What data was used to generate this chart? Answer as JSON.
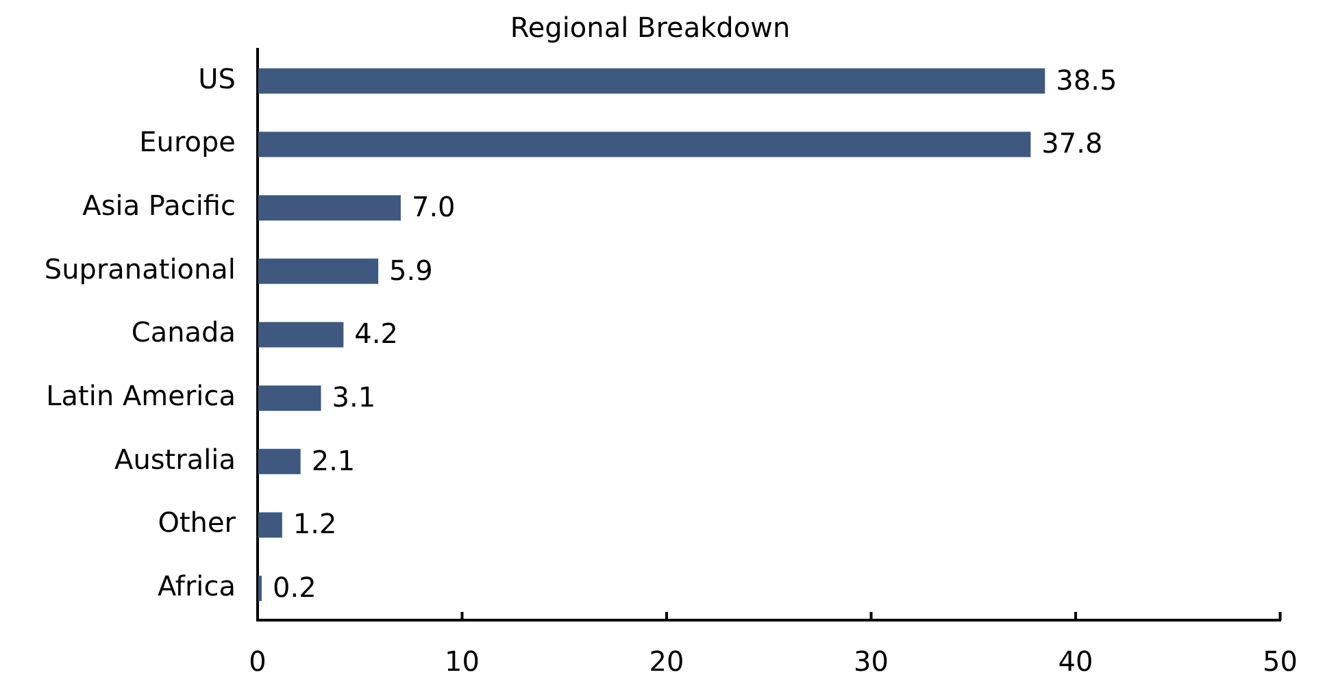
{
  "chart_data": {
    "type": "bar",
    "title": "Regional Breakdown",
    "orientation": "horizontal",
    "categories": [
      "US",
      "Europe",
      "Asia Pacific",
      "Supranational",
      "Canada",
      "Latin America",
      "Australia",
      "Other",
      "Africa"
    ],
    "values": [
      38.5,
      37.8,
      7.0,
      5.9,
      4.2,
      3.1,
      2.1,
      1.2,
      0.2
    ],
    "value_labels": [
      "38.5",
      "37.8",
      "7.0",
      "5.9",
      "4.2",
      "3.1",
      "2.1",
      "1.2",
      "0.2"
    ],
    "color": "#3e5880",
    "xlim": [
      0,
      50
    ],
    "xticks": [
      0,
      10,
      20,
      30,
      40,
      50
    ]
  }
}
